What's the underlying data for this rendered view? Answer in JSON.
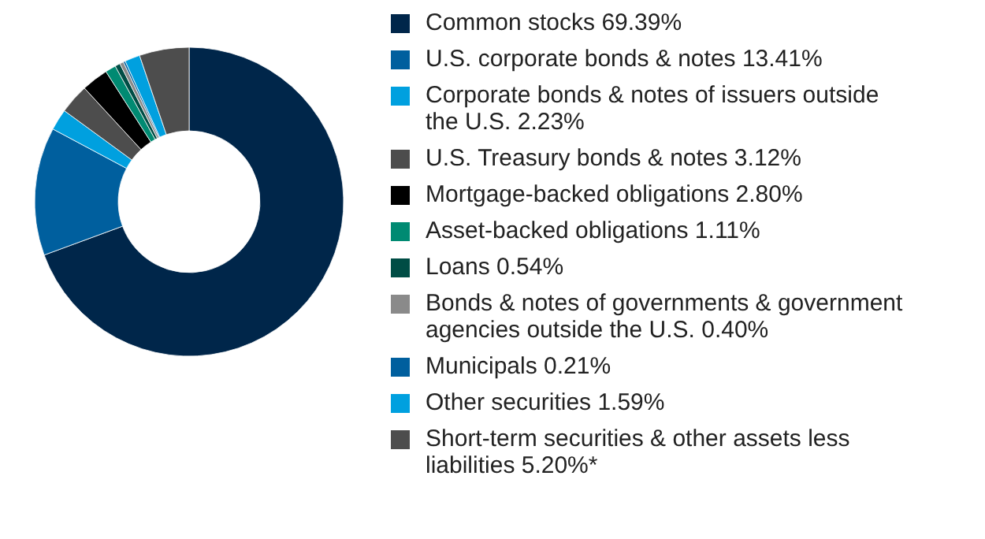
{
  "chart_data": {
    "type": "donut",
    "legend": "right",
    "categories": [
      "Common stocks 69.39%",
      "U.S. corporate bonds & notes 13.41%",
      "Corporate bonds & notes of issuers outside the U.S. 2.23%",
      "U.S. Treasury bonds & notes 3.12%",
      "Mortgage-backed obligations 2.80%",
      "Asset-backed obligations 1.11%",
      "Loans 0.54%",
      "Bonds & notes of governments & government agencies outside the U.S. 0.40%",
      "Municipals 0.21%",
      "Other securities 1.59%",
      "Short-term securities & other assets less liabilities 5.20%*"
    ],
    "values": [
      69.39,
      13.41,
      2.23,
      3.12,
      2.8,
      1.11,
      0.54,
      0.4,
      0.21,
      1.59,
      5.2
    ],
    "colors": [
      "#00264a",
      "#005f9e",
      "#00a0df",
      "#4d4d4d",
      "#000000",
      "#008a72",
      "#004d45",
      "#8a8a8a",
      "#005f9e",
      "#00a0df",
      "#4d4d4d"
    ]
  }
}
